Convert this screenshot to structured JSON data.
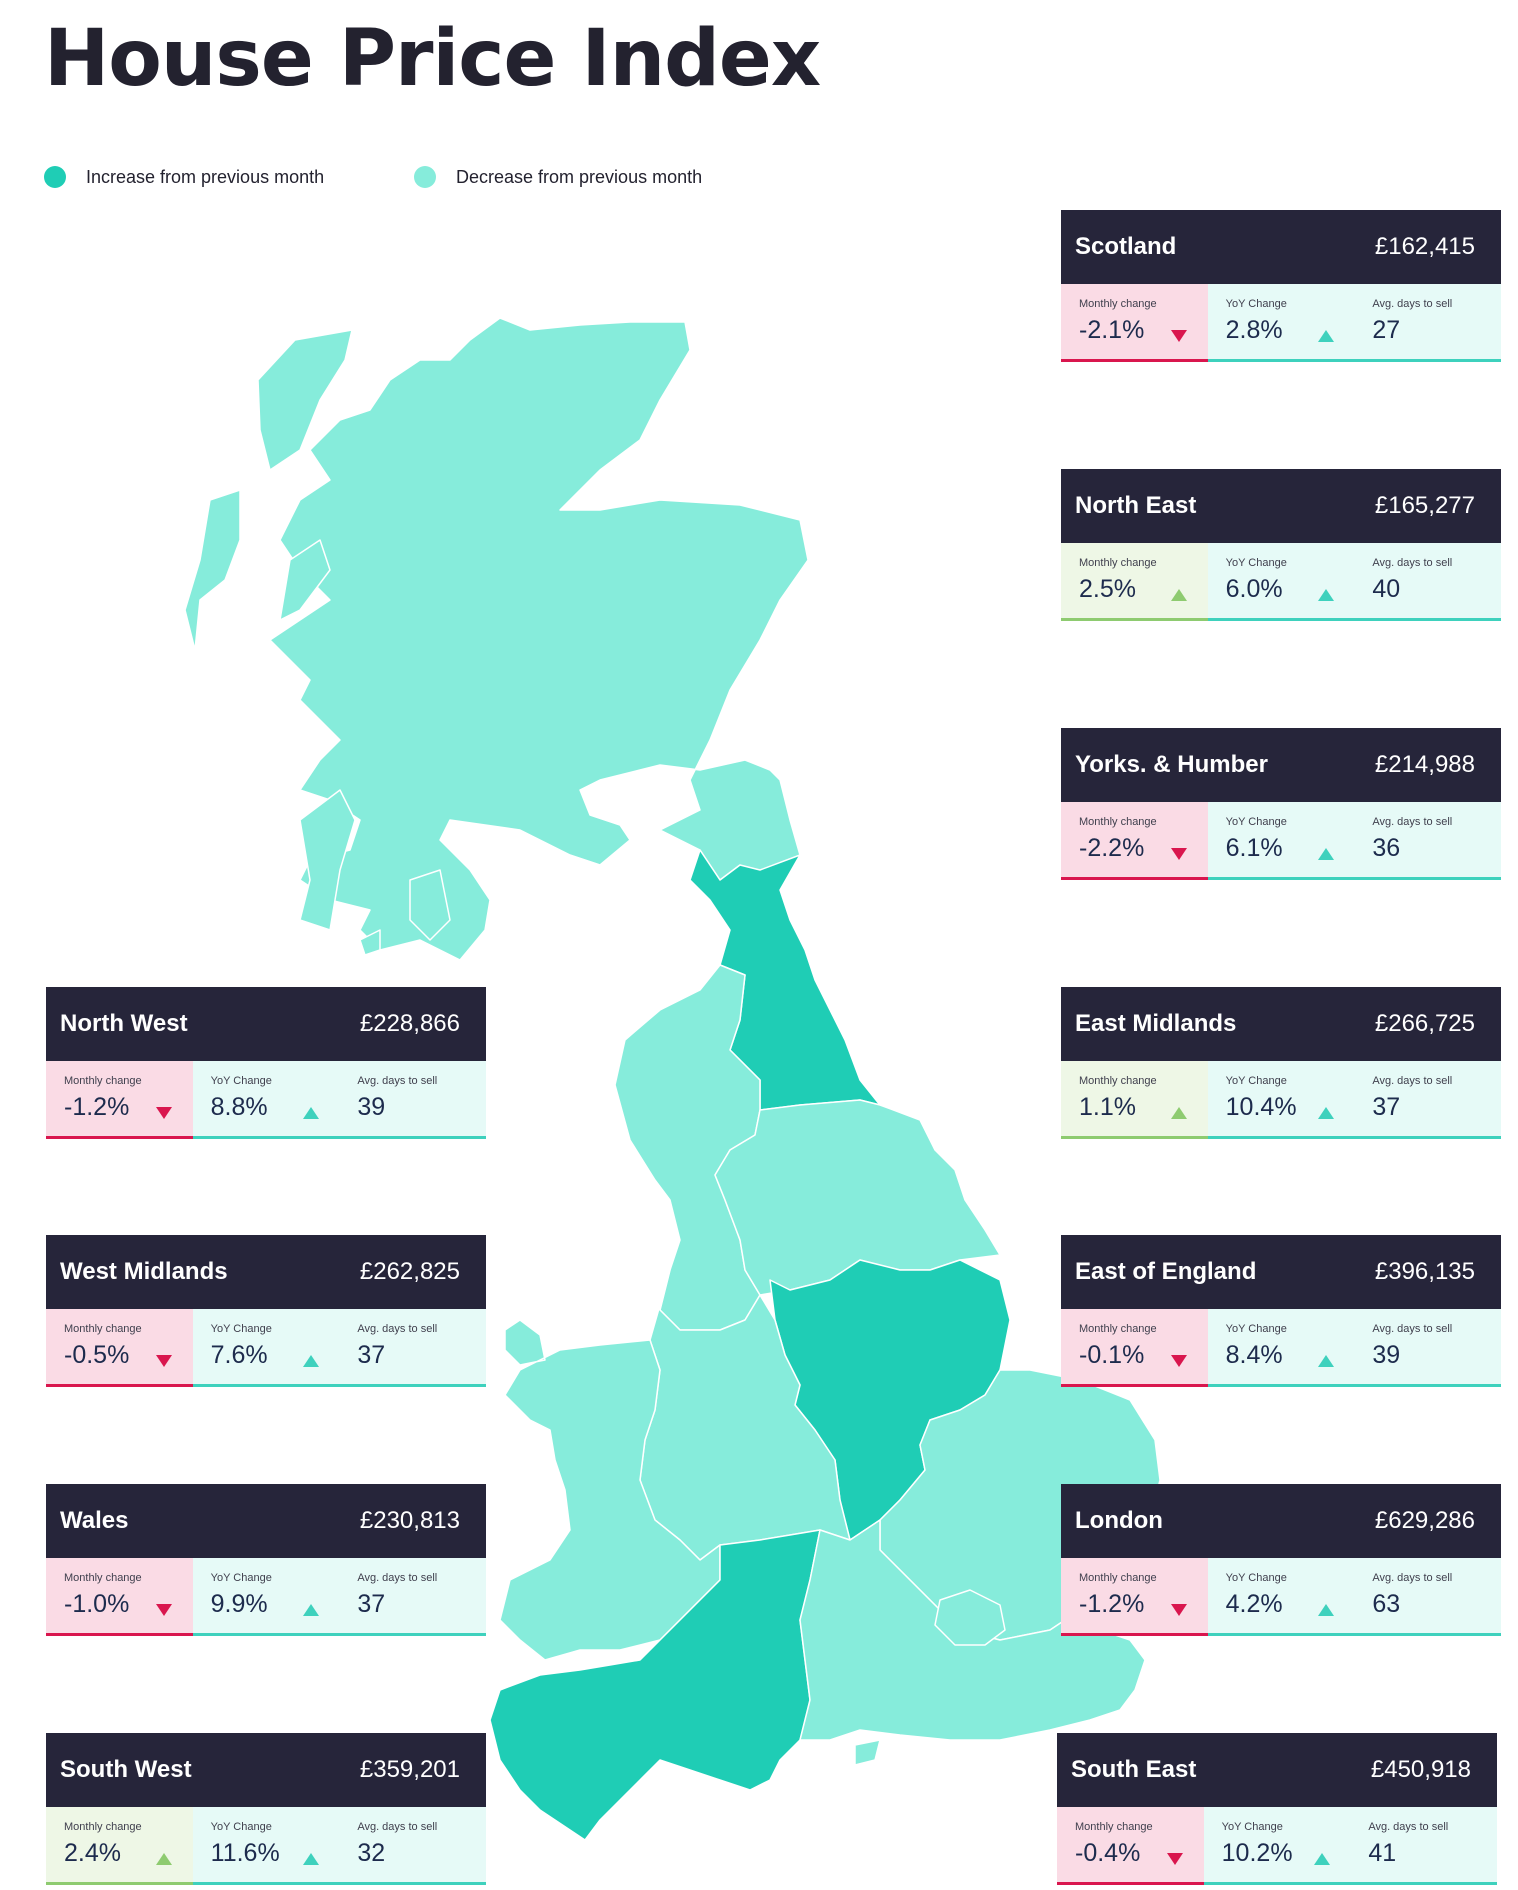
{
  "title": "House Price Index",
  "legend": {
    "increase": {
      "label": "Increase from previous month",
      "color": "#1fcdb5"
    },
    "decrease": {
      "label": "Decrease from previous month",
      "color": "#86ecdb"
    }
  },
  "labels": {
    "monthly": "Monthly change",
    "yoy": "YoY Change",
    "days": "Avg. days to sell"
  },
  "regions": [
    {
      "name": "Scotland",
      "price": "£162,415",
      "monthly": "-2.1%",
      "monthly_dir": "down",
      "yoy": "2.8%",
      "days": "27"
    },
    {
      "name": "North East",
      "price": "£165,277",
      "monthly": "2.5%",
      "monthly_dir": "up",
      "yoy": "6.0%",
      "days": "40"
    },
    {
      "name": "Yorks. & Humber",
      "price": "£214,988",
      "monthly": "-2.2%",
      "monthly_dir": "down",
      "yoy": "6.1%",
      "days": "36"
    },
    {
      "name": "East Midlands",
      "price": "£266,725",
      "monthly": "1.1%",
      "monthly_dir": "up",
      "yoy": "10.4%",
      "days": "37"
    },
    {
      "name": "East of England",
      "price": "£396,135",
      "monthly": "-0.1%",
      "monthly_dir": "down",
      "yoy": "8.4%",
      "days": "39"
    },
    {
      "name": "London",
      "price": "£629,286",
      "monthly": "-1.2%",
      "monthly_dir": "down",
      "yoy": "4.2%",
      "days": "63"
    },
    {
      "name": "South East",
      "price": "£450,918",
      "monthly": "-0.4%",
      "monthly_dir": "down",
      "yoy": "10.2%",
      "days": "41"
    },
    {
      "name": "North West",
      "price": "£228,866",
      "monthly": "-1.2%",
      "monthly_dir": "down",
      "yoy": "8.8%",
      "days": "39"
    },
    {
      "name": "West Midlands",
      "price": "£262,825",
      "monthly": "-0.5%",
      "monthly_dir": "down",
      "yoy": "7.6%",
      "days": "37"
    },
    {
      "name": "Wales",
      "price": "£230,813",
      "monthly": "-1.0%",
      "monthly_dir": "down",
      "yoy": "9.9%",
      "days": "37"
    },
    {
      "name": "South West",
      "price": "£359,201",
      "monthly": "2.4%",
      "monthly_dir": "up",
      "yoy": "11.6%",
      "days": "32"
    }
  ]
}
